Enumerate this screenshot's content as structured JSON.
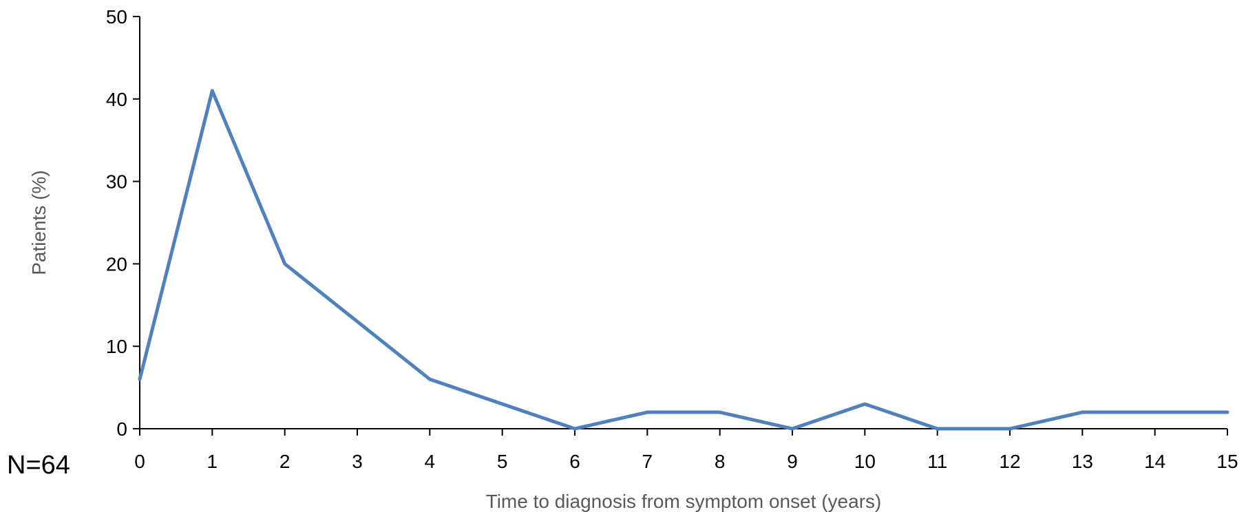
{
  "chart_data": {
    "type": "line",
    "title": "",
    "xlabel": "Time to diagnosis from symptom onset (years)",
    "ylabel": "Patients (%)",
    "categories": [
      "0",
      "1",
      "2",
      "3",
      "4",
      "5",
      "6",
      "7",
      "8",
      "9",
      "10",
      "11",
      "12",
      "13",
      "14",
      "15"
    ],
    "x": [
      0,
      1,
      2,
      4,
      6,
      7,
      8,
      9,
      10,
      11,
      12,
      13,
      15
    ],
    "series": [
      {
        "values": [
          6,
          41,
          20,
          6,
          0,
          2,
          2,
          0,
          3,
          0,
          0,
          2,
          2
        ],
        "color": "#4f81bd"
      }
    ],
    "ylim": [
      0,
      50
    ],
    "yticks": [
      "0",
      "10",
      "20",
      "30",
      "40",
      "50"
    ],
    "grid": false,
    "legend": "none",
    "annotations": [
      {
        "text": "N=64",
        "placement": "bottom-left"
      }
    ]
  }
}
